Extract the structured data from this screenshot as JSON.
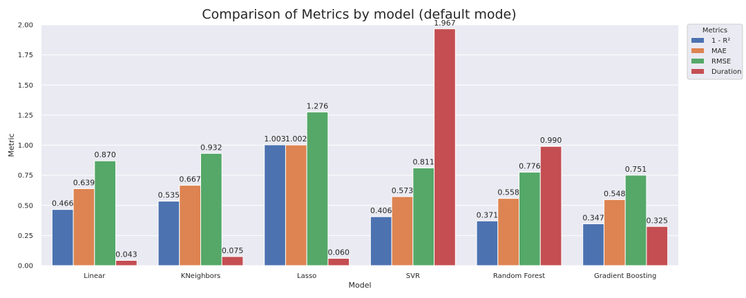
{
  "chart_data": {
    "type": "bar",
    "title": "Comparison of Metrics by model (default mode)",
    "xlabel": "Model",
    "ylabel": "Metric",
    "categories": [
      "Linear",
      "KNeighbors",
      "Lasso",
      "SVR",
      "Random Forest",
      "Gradient Boosting"
    ],
    "series": [
      {
        "name": "1 - R²",
        "values": [
          0.466,
          0.535,
          1.003,
          0.406,
          0.371,
          0.347
        ],
        "labels": [
          "0.466",
          "0.535",
          "1.003",
          "0.406",
          "0.371",
          "0.347"
        ],
        "color": "#4c72b0"
      },
      {
        "name": "MAE",
        "values": [
          0.639,
          0.667,
          1.002,
          0.573,
          0.558,
          0.548
        ],
        "labels": [
          "0.639",
          "0.667",
          "1.002",
          "0.573",
          "0.558",
          "0.548"
        ],
        "color": "#dd8452"
      },
      {
        "name": "RMSE",
        "values": [
          0.87,
          0.932,
          1.276,
          0.811,
          0.776,
          0.751
        ],
        "labels": [
          "0.870",
          "0.932",
          "1.276",
          "0.811",
          "0.776",
          "0.751"
        ],
        "color": "#55a868"
      },
      {
        "name": "Duration",
        "values": [
          0.043,
          0.075,
          0.06,
          1.967,
          0.99,
          0.325
        ],
        "labels": [
          "0.043",
          "0.075",
          "0.060",
          "1.967",
          "0.990",
          "0.325"
        ],
        "color": "#c44e52"
      }
    ],
    "ylim": [
      0,
      2.0
    ],
    "yticks": [
      "0.00",
      "0.25",
      "0.50",
      "0.75",
      "1.00",
      "1.25",
      "1.50",
      "1.75",
      "2.00"
    ],
    "grid": true,
    "legend": {
      "title": "Metrics",
      "placement": "outside-top-right"
    },
    "background_color": "#eaeaf2"
  }
}
